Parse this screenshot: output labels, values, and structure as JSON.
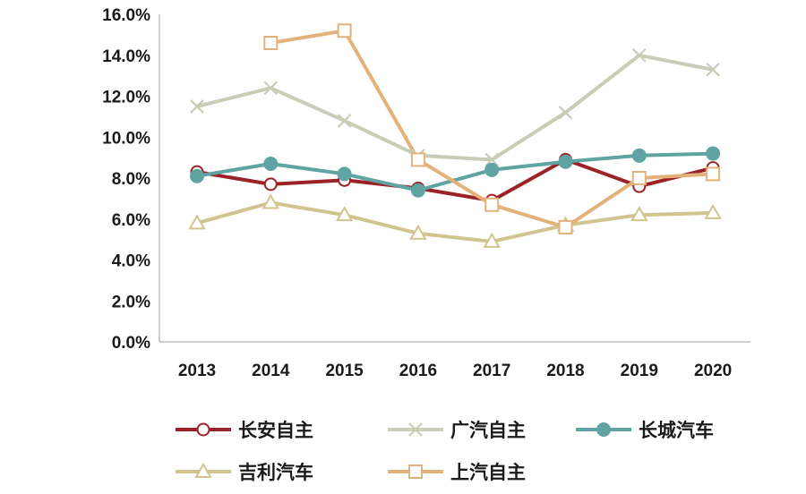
{
  "chart_data": {
    "type": "line",
    "title": "",
    "xlabel": "",
    "ylabel": "",
    "x": [
      "2013",
      "2014",
      "2015",
      "2016",
      "2017",
      "2018",
      "2019",
      "2020"
    ],
    "ylim": [
      0,
      16
    ],
    "yticks": [
      "0.0%",
      "2.0%",
      "4.0%",
      "6.0%",
      "8.0%",
      "10.0%",
      "12.0%",
      "14.0%",
      "16.0%"
    ],
    "grid": false,
    "legend_position": "bottom",
    "series": [
      {
        "name": "长安自主",
        "values": [
          8.3,
          7.7,
          7.9,
          7.5,
          6.9,
          8.9,
          7.6,
          8.5
        ],
        "color": "#9b2226",
        "marker": "circle-open"
      },
      {
        "name": "广汽自主",
        "values": [
          11.5,
          12.4,
          10.8,
          9.1,
          8.9,
          11.2,
          14.0,
          13.3
        ],
        "color": "#c9ccb6",
        "marker": "x"
      },
      {
        "name": "长城汽车",
        "values": [
          8.1,
          8.7,
          8.2,
          7.4,
          8.4,
          8.8,
          9.1,
          9.2
        ],
        "color": "#5fa3a3",
        "marker": "circle-filled"
      },
      {
        "name": "吉利汽车",
        "values": [
          5.8,
          6.8,
          6.2,
          5.3,
          4.9,
          5.7,
          6.2,
          6.3
        ],
        "color": "#d1c48e",
        "marker": "triangle-open"
      },
      {
        "name": "上汽自主",
        "values": [
          null,
          14.6,
          15.2,
          8.9,
          6.7,
          5.6,
          8.0,
          8.2
        ],
        "color": "#e3b27a",
        "marker": "square-open"
      }
    ]
  }
}
